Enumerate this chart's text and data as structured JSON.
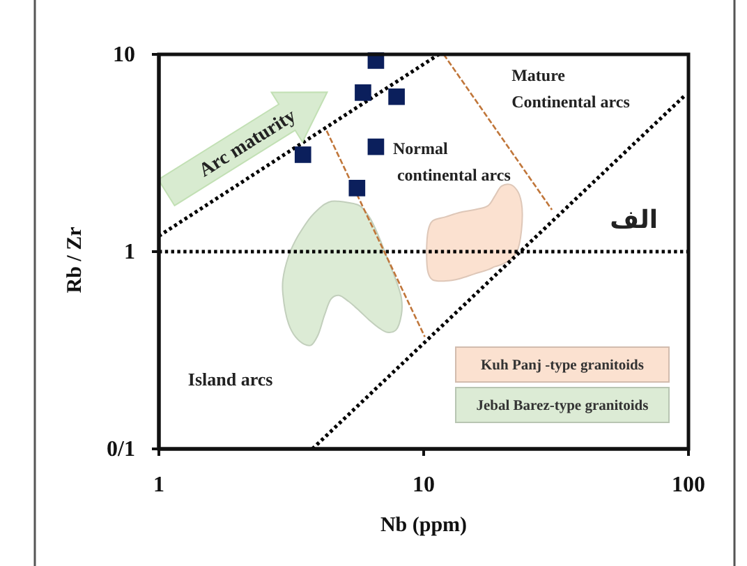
{
  "chart_data": {
    "type": "scatter",
    "xlabel": "Nb (ppm)",
    "ylabel": "Rb / Zr",
    "log": "xy",
    "xlim": [
      1,
      100
    ],
    "ylim": [
      0.1,
      10
    ],
    "xticks": [
      1,
      10,
      100
    ],
    "yticks": [
      {
        "value": 0.1,
        "label": "0/1"
      },
      1,
      10
    ],
    "legend": "bottom right",
    "series": [
      {
        "type": "area",
        "name": "Kuh Panj -type granitoids",
        "color": "#fbe1d0",
        "x": [
          10.4,
          10.8,
          12.1,
          13.7,
          15.5,
          17.5,
          18.6,
          19.7,
          21.2,
          22.5,
          23.4,
          23.4,
          22.5,
          21.2,
          19.7,
          18.6,
          17.5,
          15.5,
          13.7,
          12.1,
          10.8,
          10.4
        ],
        "values": [
          1.28,
          1.43,
          1.5,
          1.58,
          1.63,
          1.71,
          1.92,
          2.15,
          2.19,
          2.05,
          1.77,
          1.28,
          1.0,
          0.91,
          0.86,
          0.84,
          0.81,
          0.77,
          0.73,
          0.71,
          0.72,
          0.78
        ]
      },
      {
        "type": "area",
        "name": "Jebal Barez-type granitoids",
        "color": "#dcebd5",
        "x": [
          2.94,
          3.09,
          3.28,
          3.53,
          3.75,
          3.98,
          4.23,
          4.49,
          4.78,
          5.2,
          5.73,
          6.23,
          6.79,
          7.3,
          7.85,
          8.24,
          8.24,
          7.85,
          7.3,
          6.79,
          6.23,
          5.73,
          5.2,
          4.78,
          4.49,
          4.23,
          3.98,
          3.75,
          3.53,
          3.28,
          3.09,
          2.94
        ],
        "values": [
          0.72,
          0.95,
          1.14,
          1.34,
          1.5,
          1.63,
          1.74,
          1.8,
          1.8,
          1.77,
          1.71,
          1.5,
          1.18,
          0.92,
          0.72,
          0.58,
          0.48,
          0.4,
          0.39,
          0.41,
          0.45,
          0.5,
          0.56,
          0.6,
          0.58,
          0.48,
          0.375,
          0.335,
          0.34,
          0.37,
          0.43,
          0.61
        ]
      },
      {
        "type": "line",
        "color": "#000000",
        "line_style": "dotted",
        "x": [
          1,
          11.4
        ],
        "values": [
          1.2,
          10
        ]
      },
      {
        "type": "line",
        "color": "#000000",
        "line_style": "dotted",
        "x": [
          3.8,
          97
        ],
        "values": [
          0.1,
          6.2
        ]
      },
      {
        "type": "line",
        "color": "#c0763a",
        "line_style": "dashed",
        "x": [
          4.3,
          10.1
        ],
        "values": [
          4.1,
          0.37
        ]
      },
      {
        "type": "line",
        "color": "#c0763a",
        "line_style": "dashed",
        "x": [
          11.9,
          30.5
        ],
        "values": [
          10,
          1.63
        ]
      },
      {
        "color": "#0b1f5c",
        "marker": "square",
        "x": [
          6.6,
          5.9,
          7.9,
          6.6,
          3.5,
          5.6
        ],
        "values": [
          9.3,
          6.4,
          6.1,
          3.4,
          3.1,
          2.1
        ]
      }
    ],
    "ref_lines": [
      {
        "axis": "y",
        "value": 1,
        "color": "#000000",
        "line_style": "dotted"
      }
    ],
    "annotations": [
      "Arc maturity",
      "Mature\nContinental arcs",
      "Normal\ncontinental arcs",
      "Island arcs",
      "الف"
    ]
  }
}
